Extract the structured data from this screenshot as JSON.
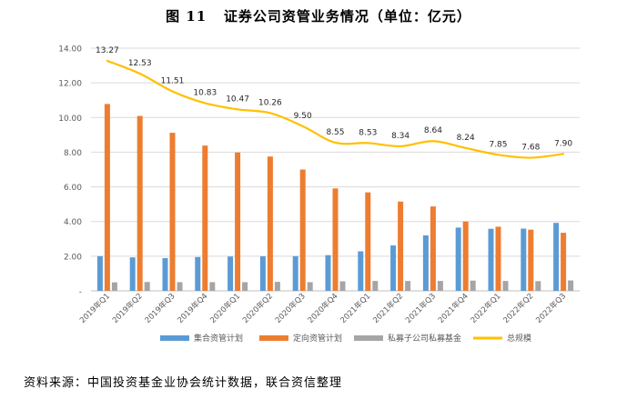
{
  "title": "图 11   证券公司资管业务情况（单位：亿元）",
  "source": "资料来源：中国投资基金业协会统计数据，联合资信整理",
  "colors": {
    "collective": "#5b9bd5",
    "targeted": "#ed7d31",
    "private": "#a5a5a5",
    "total": "#ffc000"
  },
  "chart_data": {
    "type": "bar",
    "categories": [
      "2019年Q1",
      "2019年Q2",
      "2019年Q3",
      "2019年Q4",
      "2020年Q1",
      "2020年Q2",
      "2020年Q3",
      "2020年Q4",
      "2021年Q1",
      "2021年Q2",
      "2021年Q3",
      "2021年Q4",
      "2022年Q1",
      "2022年Q2",
      "2022年Q3"
    ],
    "series": [
      {
        "name": "集合资管计划",
        "kind": "bar",
        "color_key": "collective",
        "values": [
          2.0,
          1.93,
          1.89,
          1.95,
          1.98,
          1.99,
          2.0,
          2.06,
          2.28,
          2.62,
          3.2,
          3.65,
          3.58,
          3.59,
          3.92
        ]
      },
      {
        "name": "定向资管计划",
        "kind": "bar",
        "color_key": "targeted",
        "values": [
          10.78,
          10.09,
          9.12,
          8.38,
          7.98,
          7.75,
          7.0,
          5.91,
          5.68,
          5.15,
          4.87,
          4.0,
          3.7,
          3.53,
          3.35
        ]
      },
      {
        "name": "私募子公司私募基金",
        "kind": "bar",
        "color_key": "private",
        "values": [
          0.49,
          0.51,
          0.5,
          0.5,
          0.5,
          0.52,
          0.5,
          0.55,
          0.57,
          0.57,
          0.57,
          0.59,
          0.57,
          0.56,
          0.6
        ]
      },
      {
        "name": "总规模",
        "kind": "line",
        "color_key": "total",
        "values": [
          13.27,
          12.53,
          11.51,
          10.83,
          10.47,
          10.26,
          9.5,
          8.55,
          8.53,
          8.34,
          8.64,
          8.24,
          7.85,
          7.68,
          7.9
        ],
        "labels": [
          "13.27",
          "12.53",
          "11.51",
          "10.83",
          "10.47",
          "10.26",
          "9.50",
          "8.55",
          "8.53",
          "8.34",
          "8.64",
          "8.24",
          "7.85",
          "7.68",
          "7.90"
        ]
      }
    ],
    "y_ticks": [
      "-",
      "2.00",
      "4.00",
      "6.00",
      "8.00",
      "10.00",
      "12.00",
      "14.00"
    ],
    "ylim": [
      0,
      14
    ],
    "grid": true,
    "legend": "bottom",
    "title": "",
    "xlabel": "",
    "ylabel": ""
  }
}
